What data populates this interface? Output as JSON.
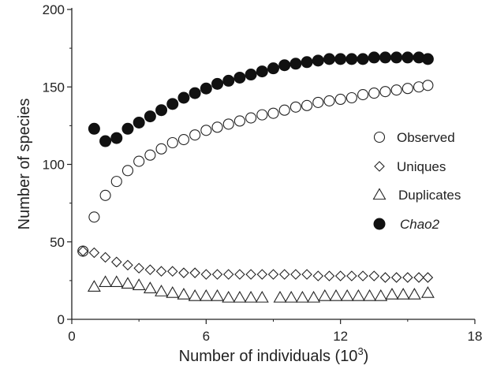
{
  "chart_data": {
    "type": "scatter",
    "xlabel": "Number of individuals (10",
    "xlabel_superscript": "3",
    "xlabel_suffix": ")",
    "ylabel": "Number of species",
    "xlim": [
      0,
      18
    ],
    "ylim": [
      0,
      200
    ],
    "x_ticks": [
      "0",
      "6",
      "12",
      "18"
    ],
    "y_ticks": [
      "0",
      "50",
      "100",
      "150",
      "200"
    ],
    "grid": false,
    "legend_position": "right",
    "series": [
      {
        "name": "Observed",
        "marker": "open-circle",
        "italic": false,
        "points": [
          [
            0.5,
            44
          ],
          [
            1,
            66
          ],
          [
            1.5,
            80
          ],
          [
            2,
            89
          ],
          [
            2.5,
            96
          ],
          [
            3,
            102
          ],
          [
            3.5,
            106
          ],
          [
            4,
            110
          ],
          [
            4.5,
            114
          ],
          [
            5,
            116
          ],
          [
            5.5,
            119
          ],
          [
            6,
            122
          ],
          [
            6.5,
            124
          ],
          [
            7,
            126
          ],
          [
            7.5,
            128
          ],
          [
            8,
            130
          ],
          [
            8.5,
            132
          ],
          [
            9,
            133
          ],
          [
            9.5,
            135
          ],
          [
            10,
            137
          ],
          [
            10.5,
            138
          ],
          [
            11,
            140
          ],
          [
            11.5,
            141
          ],
          [
            12,
            142
          ],
          [
            12.5,
            143
          ],
          [
            13,
            145
          ],
          [
            13.5,
            146
          ],
          [
            14,
            147
          ],
          [
            14.5,
            148
          ],
          [
            15,
            149
          ],
          [
            15.5,
            150
          ],
          [
            15.9,
            151
          ]
        ]
      },
      {
        "name": "Uniques",
        "marker": "open-diamond",
        "italic": false,
        "points": [
          [
            0.5,
            44
          ],
          [
            1,
            43
          ],
          [
            1.5,
            40
          ],
          [
            2,
            37
          ],
          [
            2.5,
            35
          ],
          [
            3,
            33
          ],
          [
            3.5,
            32
          ],
          [
            4,
            31
          ],
          [
            4.5,
            31
          ],
          [
            5,
            30
          ],
          [
            5.5,
            30
          ],
          [
            6,
            29
          ],
          [
            6.5,
            29
          ],
          [
            7,
            29
          ],
          [
            7.5,
            29
          ],
          [
            8,
            29
          ],
          [
            8.5,
            29
          ],
          [
            9,
            29
          ],
          [
            9.5,
            29
          ],
          [
            10,
            29
          ],
          [
            10.5,
            29
          ],
          [
            11,
            28
          ],
          [
            11.5,
            28
          ],
          [
            12,
            28
          ],
          [
            12.5,
            28
          ],
          [
            13,
            28
          ],
          [
            13.5,
            28
          ],
          [
            14,
            27
          ],
          [
            14.5,
            27
          ],
          [
            15,
            27
          ],
          [
            15.5,
            27
          ],
          [
            15.9,
            27
          ]
        ]
      },
      {
        "name": "Duplicates",
        "marker": "open-triangle",
        "italic": false,
        "points": [
          [
            1,
            21
          ],
          [
            1.5,
            24
          ],
          [
            2,
            24
          ],
          [
            2.5,
            23
          ],
          [
            3,
            22
          ],
          [
            3.5,
            20
          ],
          [
            4,
            18
          ],
          [
            4.5,
            17
          ],
          [
            5,
            16
          ],
          [
            5.5,
            15
          ],
          [
            6,
            15
          ],
          [
            6.5,
            15
          ],
          [
            7,
            14
          ],
          [
            7.5,
            14
          ],
          [
            8,
            14
          ],
          [
            8.5,
            14
          ],
          [
            9.3,
            14
          ],
          [
            9.8,
            14
          ],
          [
            10.3,
            14
          ],
          [
            10.8,
            14
          ],
          [
            11.3,
            15
          ],
          [
            11.8,
            15
          ],
          [
            12.3,
            15
          ],
          [
            12.8,
            15
          ],
          [
            13.3,
            15
          ],
          [
            13.8,
            15
          ],
          [
            14.3,
            16
          ],
          [
            14.8,
            16
          ],
          [
            15.3,
            16
          ],
          [
            15.9,
            17
          ]
        ]
      },
      {
        "name": "Chao2",
        "marker": "filled-circle",
        "italic": true,
        "points": [
          [
            1,
            123
          ],
          [
            1.5,
            115
          ],
          [
            2,
            117
          ],
          [
            2.5,
            123
          ],
          [
            3,
            127
          ],
          [
            3.5,
            131
          ],
          [
            4,
            135
          ],
          [
            4.5,
            139
          ],
          [
            5,
            143
          ],
          [
            5.5,
            146
          ],
          [
            6,
            149
          ],
          [
            6.5,
            152
          ],
          [
            7,
            154
          ],
          [
            7.5,
            156
          ],
          [
            8,
            158
          ],
          [
            8.5,
            160
          ],
          [
            9,
            162
          ],
          [
            9.5,
            164
          ],
          [
            10,
            165
          ],
          [
            10.5,
            166
          ],
          [
            11,
            167
          ],
          [
            11.5,
            168
          ],
          [
            12,
            168
          ],
          [
            12.5,
            168
          ],
          [
            13,
            168
          ],
          [
            13.5,
            169
          ],
          [
            14,
            169
          ],
          [
            14.5,
            169
          ],
          [
            15,
            169
          ],
          [
            15.5,
            169
          ],
          [
            15.9,
            168
          ]
        ]
      }
    ]
  }
}
